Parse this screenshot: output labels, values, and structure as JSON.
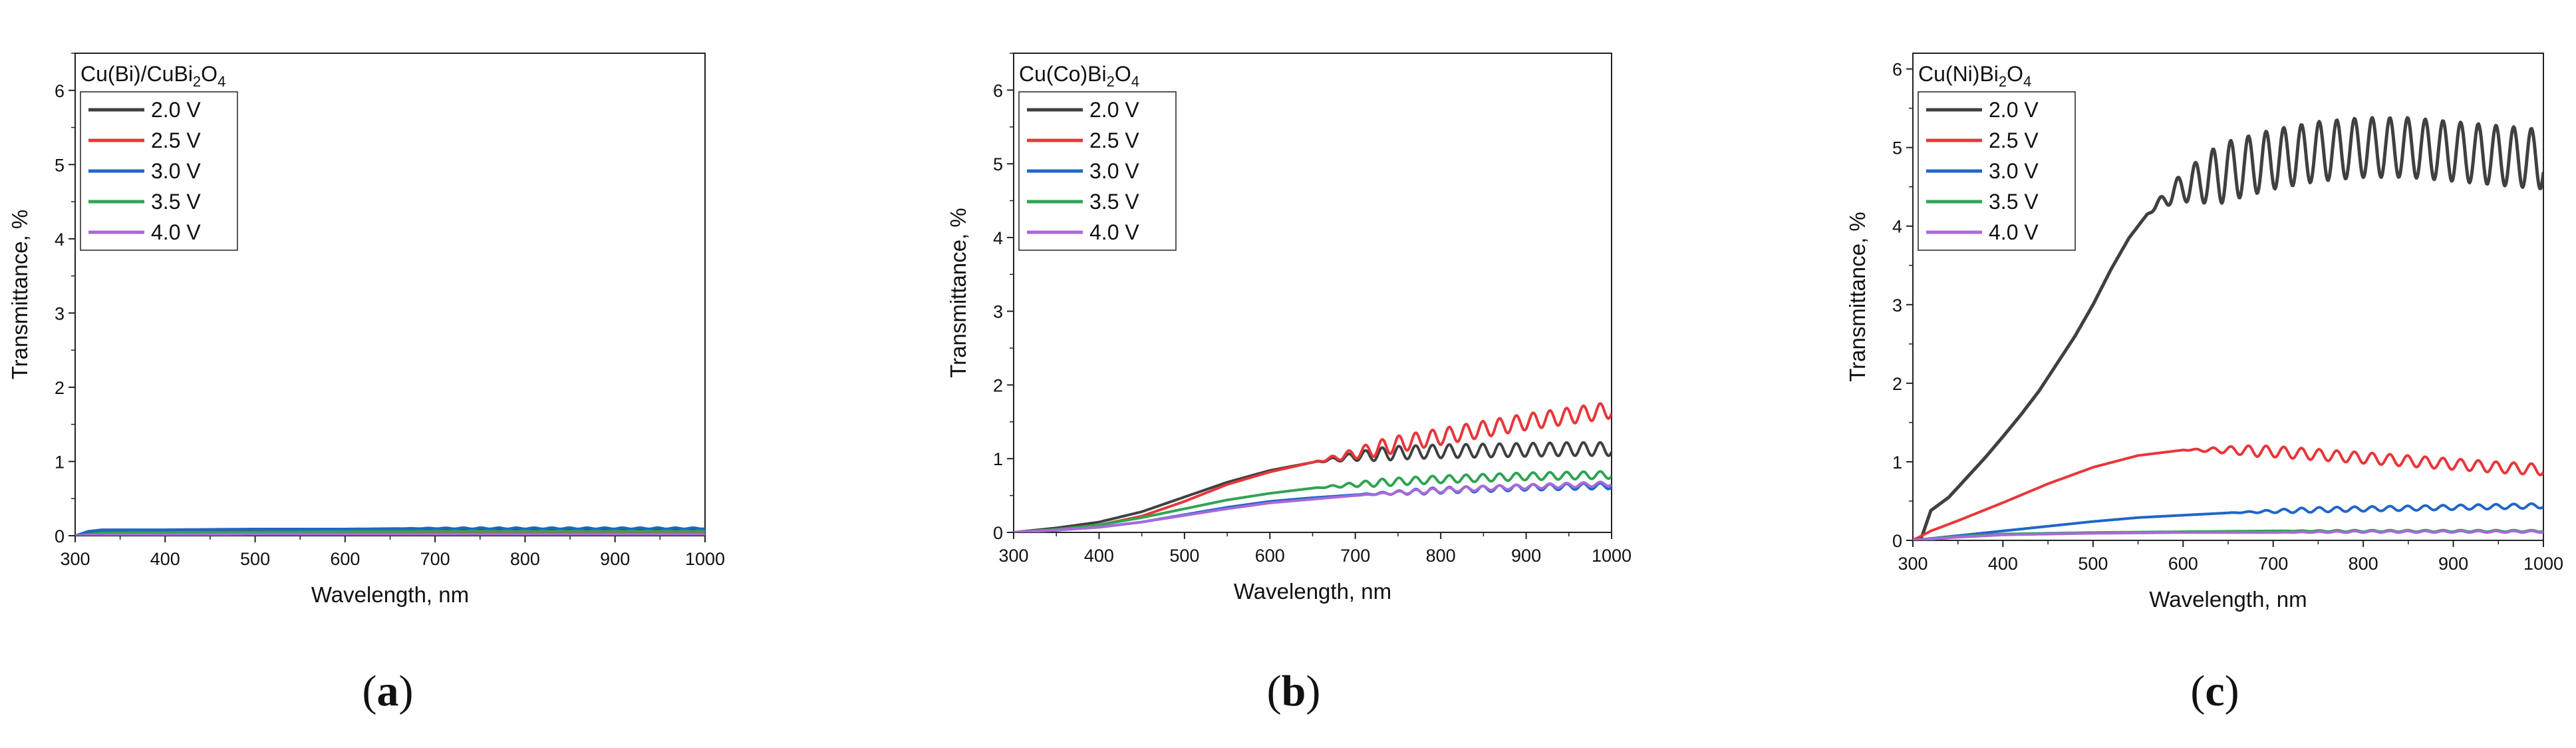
{
  "chart_data": [
    {
      "type": "line",
      "panel_label": "a",
      "title": "Cu(Bi)/CuBi",
      "title_sub1": "2",
      "title_mid": "O",
      "title_sub2": "4",
      "xlabel": "Wavelength, nm",
      "ylabel": "Transmittance, %",
      "xlim": [
        300,
        1000
      ],
      "ylim": [
        0,
        6.5
      ],
      "xticks": [
        300,
        400,
        500,
        600,
        700,
        800,
        900,
        1000
      ],
      "yticks": [
        0,
        1,
        2,
        3,
        4,
        5,
        6
      ],
      "legend_position": "top-left",
      "series": [
        {
          "name": "2.0 V",
          "color": "#404040",
          "x": [
            300,
            315,
            330,
            400,
            500,
            600,
            700,
            800,
            900,
            1000
          ],
          "y": [
            0,
            0.05,
            0.07,
            0.07,
            0.08,
            0.08,
            0.08,
            0.08,
            0.08,
            0.08
          ],
          "osc_amp": 0.005,
          "osc_start": 600
        },
        {
          "name": "2.5 V",
          "color": "#e8363a",
          "x": [
            300,
            330,
            500,
            700,
            1000
          ],
          "y": [
            0,
            0.02,
            0.03,
            0.03,
            0.03
          ],
          "osc_amp": 0,
          "osc_start": 1000
        },
        {
          "name": "3.0 V",
          "color": "#1f66c8",
          "x": [
            300,
            315,
            330,
            400,
            500,
            600,
            700,
            800,
            900,
            1000
          ],
          "y": [
            0,
            0.06,
            0.08,
            0.08,
            0.09,
            0.09,
            0.1,
            0.1,
            0.1,
            0.1
          ],
          "osc_amp": 0.008,
          "osc_start": 650
        },
        {
          "name": "3.5 V",
          "color": "#31a354",
          "x": [
            300,
            330,
            500,
            700,
            1000
          ],
          "y": [
            0,
            0.04,
            0.05,
            0.06,
            0.06
          ],
          "osc_amp": 0,
          "osc_start": 1000
        },
        {
          "name": "4.0 V",
          "color": "#a86ad8",
          "x": [
            300,
            330,
            500,
            700,
            1000
          ],
          "y": [
            0,
            0.01,
            0.02,
            0.02,
            0.02
          ],
          "osc_amp": 0,
          "osc_start": 1000
        }
      ]
    },
    {
      "type": "line",
      "panel_label": "b",
      "title": "Cu(Co)Bi",
      "title_sub1": "2",
      "title_mid": "O",
      "title_sub2": "4",
      "xlabel": "Wavelength, nm",
      "ylabel": "Transmittance, %",
      "xlim": [
        300,
        1000
      ],
      "ylim": [
        0,
        6.5
      ],
      "xticks": [
        300,
        400,
        500,
        600,
        700,
        800,
        900,
        1000
      ],
      "yticks": [
        0,
        1,
        2,
        3,
        4,
        5,
        6
      ],
      "legend_position": "top-left",
      "series": [
        {
          "name": "2.0 V",
          "color": "#404040",
          "x": [
            300,
            350,
            400,
            450,
            500,
            550,
            600,
            650,
            700,
            750,
            800,
            850,
            900,
            950,
            1000
          ],
          "y": [
            0,
            0.06,
            0.14,
            0.28,
            0.48,
            0.68,
            0.84,
            0.95,
            1.03,
            1.08,
            1.1,
            1.11,
            1.12,
            1.13,
            1.13
          ],
          "osc_amp": 0.09,
          "osc_start": 650
        },
        {
          "name": "2.5 V",
          "color": "#e8363a",
          "x": [
            300,
            350,
            400,
            450,
            500,
            550,
            600,
            650,
            700,
            750,
            800,
            850,
            900,
            950,
            1000
          ],
          "y": [
            0,
            0.04,
            0.1,
            0.22,
            0.42,
            0.65,
            0.82,
            0.95,
            1.07,
            1.2,
            1.3,
            1.4,
            1.5,
            1.58,
            1.66
          ],
          "osc_amp": 0.11,
          "osc_start": 650
        },
        {
          "name": "3.0 V",
          "color": "#1f66c8",
          "x": [
            300,
            350,
            400,
            450,
            500,
            550,
            600,
            650,
            700,
            750,
            800,
            850,
            900,
            950,
            1000
          ],
          "y": [
            0,
            0.03,
            0.07,
            0.14,
            0.24,
            0.34,
            0.42,
            0.47,
            0.51,
            0.54,
            0.57,
            0.59,
            0.61,
            0.62,
            0.63
          ],
          "osc_amp": 0.04,
          "osc_start": 700
        },
        {
          "name": "3.5 V",
          "color": "#31a354",
          "x": [
            300,
            350,
            400,
            450,
            500,
            550,
            600,
            650,
            700,
            750,
            800,
            850,
            900,
            950,
            1000
          ],
          "y": [
            0,
            0.04,
            0.1,
            0.2,
            0.32,
            0.44,
            0.53,
            0.6,
            0.65,
            0.69,
            0.72,
            0.74,
            0.76,
            0.77,
            0.78
          ],
          "osc_amp": 0.05,
          "osc_start": 650
        },
        {
          "name": "4.0 V",
          "color": "#a86ad8",
          "x": [
            300,
            350,
            400,
            450,
            500,
            550,
            600,
            650,
            700,
            750,
            800,
            850,
            900,
            950,
            1000
          ],
          "y": [
            0,
            0.03,
            0.07,
            0.14,
            0.23,
            0.32,
            0.4,
            0.45,
            0.5,
            0.54,
            0.57,
            0.6,
            0.62,
            0.64,
            0.66
          ],
          "osc_amp": 0.03,
          "osc_start": 700
        }
      ]
    },
    {
      "type": "line",
      "panel_label": "c",
      "title": "Cu(Ni)Bi",
      "title_sub1": "2",
      "title_mid": "O",
      "title_sub2": "4",
      "xlabel": "Wavelength, nm",
      "ylabel": "Transmittance, %",
      "xlim": [
        300,
        1000
      ],
      "ylim": [
        0,
        6.2
      ],
      "xticks": [
        300,
        400,
        500,
        600,
        700,
        800,
        900,
        1000
      ],
      "yticks": [
        0,
        1,
        2,
        3,
        4,
        5,
        6
      ],
      "legend_position": "top-left",
      "series": [
        {
          "name": "2.0 V",
          "color": "#404040",
          "x": [
            300,
            310,
            320,
            340,
            360,
            380,
            400,
            420,
            440,
            460,
            480,
            500,
            520,
            540,
            560,
            580,
            600,
            650,
            700,
            750,
            800,
            850,
            900,
            950,
            1000
          ],
          "y": [
            0,
            0.05,
            0.38,
            0.55,
            0.8,
            1.05,
            1.32,
            1.6,
            1.9,
            2.25,
            2.6,
            3.0,
            3.45,
            3.85,
            4.15,
            4.35,
            4.5,
            4.7,
            4.85,
            4.95,
            5.0,
            5.0,
            4.95,
            4.9,
            4.85
          ],
          "osc_amp": 0.38,
          "osc_start": 560
        },
        {
          "name": "2.5 V",
          "color": "#e8363a",
          "x": [
            300,
            320,
            350,
            400,
            450,
            500,
            550,
            600,
            650,
            700,
            750,
            800,
            850,
            900,
            950,
            1000
          ],
          "y": [
            0,
            0.12,
            0.25,
            0.48,
            0.72,
            0.93,
            1.08,
            1.15,
            1.15,
            1.13,
            1.09,
            1.05,
            1.01,
            0.97,
            0.93,
            0.9
          ],
          "osc_amp": 0.07,
          "osc_start": 600
        },
        {
          "name": "3.0 V",
          "color": "#1f66c8",
          "x": [
            300,
            350,
            400,
            450,
            500,
            550,
            600,
            650,
            700,
            750,
            800,
            850,
            900,
            950,
            1000
          ],
          "y": [
            0,
            0.06,
            0.12,
            0.18,
            0.24,
            0.29,
            0.32,
            0.35,
            0.37,
            0.39,
            0.4,
            0.41,
            0.42,
            0.43,
            0.44
          ],
          "osc_amp": 0.03,
          "osc_start": 650
        },
        {
          "name": "3.5 V",
          "color": "#31a354",
          "x": [
            300,
            350,
            400,
            500,
            600,
            700,
            800,
            900,
            1000
          ],
          "y": [
            0,
            0.05,
            0.08,
            0.1,
            0.11,
            0.12,
            0.12,
            0.12,
            0.12
          ],
          "osc_amp": 0.01,
          "osc_start": 700
        },
        {
          "name": "4.0 V",
          "color": "#a86ad8",
          "x": [
            300,
            350,
            400,
            500,
            600,
            700,
            800,
            900,
            1000
          ],
          "y": [
            0,
            0.04,
            0.07,
            0.09,
            0.1,
            0.1,
            0.11,
            0.11,
            0.11
          ],
          "osc_amp": 0.01,
          "osc_start": 700
        }
      ]
    }
  ]
}
